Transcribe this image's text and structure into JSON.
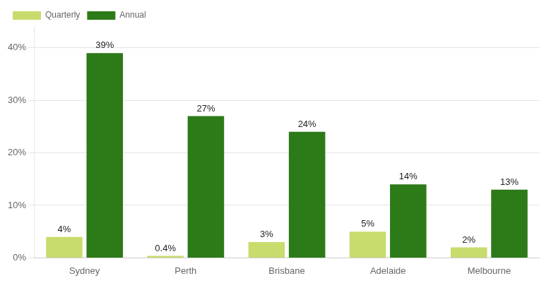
{
  "chart_data": {
    "type": "bar",
    "categories": [
      "Sydney",
      "Perth",
      "Brisbane",
      "Adelaide",
      "Melbourne"
    ],
    "series": [
      {
        "name": "Quarterly",
        "color": "#c8dc6e",
        "values": [
          4,
          0.4,
          3,
          5,
          2
        ],
        "value_labels": [
          "4%",
          "0.4%",
          "3%",
          "5%",
          "2%"
        ]
      },
      {
        "name": "Annual",
        "color": "#2d7a18",
        "values": [
          39,
          27,
          24,
          14,
          13
        ],
        "value_labels": [
          "39%",
          "27%",
          "24%",
          "14%",
          "13%"
        ]
      }
    ],
    "ylim": [
      0,
      44
    ],
    "yticks": [
      {
        "value": 0,
        "label": "0%"
      },
      {
        "value": 10,
        "label": "10%"
      },
      {
        "value": 20,
        "label": "20%"
      },
      {
        "value": 30,
        "label": "30%"
      },
      {
        "value": 40,
        "label": "40%"
      }
    ],
    "grid": true,
    "legend": "upper left",
    "data_labels": true
  }
}
